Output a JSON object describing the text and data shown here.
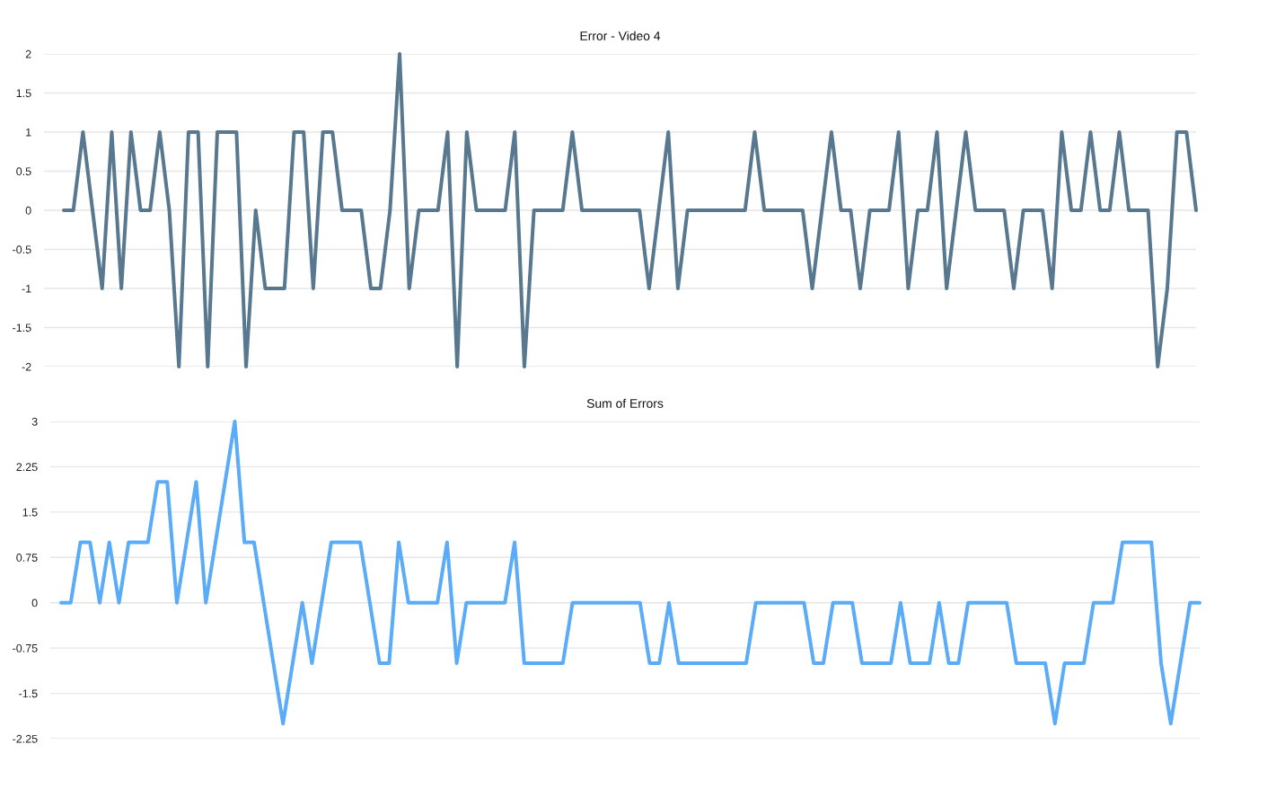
{
  "chart_data": [
    {
      "type": "line",
      "title": "Error - Video 4",
      "categories": [
        null,
        null,
        null,
        null,
        null,
        null,
        null,
        null,
        null,
        null,
        null,
        null,
        null,
        null,
        null,
        null,
        null,
        null,
        null,
        null,
        null,
        null,
        null,
        null,
        null,
        null,
        null,
        null,
        null,
        null,
        null,
        null,
        null,
        null,
        null,
        null,
        null,
        null,
        null,
        null,
        null,
        null,
        null,
        null,
        null,
        null,
        null,
        null,
        null,
        null,
        null,
        null,
        null,
        null,
        null,
        null,
        null,
        null,
        null,
        null,
        null,
        null,
        null,
        null,
        null,
        null,
        null,
        null,
        null,
        null,
        null,
        null,
        null,
        null,
        null,
        null,
        null,
        null,
        null,
        null,
        null,
        null,
        null,
        null,
        null,
        null,
        null,
        null,
        null,
        null,
        null,
        null,
        null,
        null,
        null,
        null,
        null,
        null,
        null,
        null,
        null,
        null,
        null,
        null,
        null,
        null,
        null,
        null,
        null,
        null,
        null,
        null,
        null,
        null,
        null,
        null,
        null,
        null,
        null
      ],
      "series": [
        {
          "color": "#58788f",
          "values": [
            0,
            0,
            1,
            0,
            -1,
            1,
            -1,
            1,
            0,
            0,
            1,
            0,
            -2,
            1,
            1,
            -2,
            1,
            1,
            1,
            -2,
            0,
            -1,
            -1,
            -1,
            1,
            1,
            -1,
            1,
            1,
            0,
            0,
            0,
            -1,
            -1,
            0,
            2,
            -1,
            0,
            0,
            0,
            1,
            -2,
            1,
            0,
            0,
            0,
            0,
            1,
            -2,
            0,
            0,
            0,
            0,
            1,
            0,
            0,
            0,
            0,
            0,
            0,
            0,
            -1,
            0,
            1,
            -1,
            0,
            0,
            0,
            0,
            0,
            0,
            0,
            1,
            0,
            0,
            0,
            0,
            0,
            -1,
            0,
            1,
            0,
            0,
            -1,
            0,
            0,
            0,
            1,
            -1,
            0,
            0,
            1,
            -1,
            0,
            1,
            0,
            0,
            0,
            0,
            -1,
            0,
            0,
            0,
            -1,
            1,
            0,
            0,
            1,
            0,
            0,
            1,
            0,
            0,
            0,
            -2,
            -1,
            1,
            1,
            0
          ]
        }
      ],
      "ylim": [
        -2,
        2
      ],
      "yticks": [
        -2,
        -1.5,
        -1,
        -0.5,
        0,
        0.5,
        1,
        1.5,
        2
      ],
      "grid": "y",
      "tick_labels": "y"
    },
    {
      "type": "line",
      "title": "Sum of Errors",
      "categories": [
        null,
        null,
        null,
        null,
        null,
        null,
        null,
        null,
        null,
        null,
        null,
        null,
        null,
        null,
        null,
        null,
        null,
        null,
        null,
        null,
        null,
        null,
        null,
        null,
        null,
        null,
        null,
        null,
        null,
        null,
        null,
        null,
        null,
        null,
        null,
        null,
        null,
        null,
        null,
        null,
        null,
        null,
        null,
        null,
        null,
        null,
        null,
        null,
        null,
        null,
        null,
        null,
        null,
        null,
        null,
        null,
        null,
        null,
        null,
        null,
        null,
        null,
        null,
        null,
        null,
        null,
        null,
        null,
        null,
        null,
        null,
        null,
        null,
        null,
        null,
        null,
        null,
        null,
        null,
        null,
        null,
        null,
        null,
        null,
        null,
        null,
        null,
        null,
        null,
        null,
        null,
        null,
        null,
        null,
        null,
        null,
        null,
        null,
        null,
        null,
        null,
        null,
        null,
        null,
        null,
        null,
        null,
        null,
        null,
        null,
        null,
        null,
        null,
        null,
        null,
        null,
        null,
        null,
        null
      ],
      "series": [
        {
          "color": "#5aabf8",
          "values": [
            0,
            0,
            1,
            1,
            0,
            1,
            0,
            1,
            1,
            1,
            2,
            2,
            0,
            1,
            2,
            0,
            1,
            2,
            3,
            1,
            1,
            0,
            -1,
            -2,
            -1,
            0,
            -1,
            0,
            1,
            1,
            1,
            1,
            0,
            -1,
            -1,
            1,
            0,
            0,
            0,
            0,
            1,
            -1,
            0,
            0,
            0,
            0,
            0,
            1,
            -1,
            -1,
            -1,
            -1,
            -1,
            0,
            0,
            0,
            0,
            0,
            0,
            0,
            0,
            -1,
            -1,
            0,
            -1,
            -1,
            -1,
            -1,
            -1,
            -1,
            -1,
            -1,
            0,
            0,
            0,
            0,
            0,
            0,
            -1,
            -1,
            0,
            0,
            0,
            -1,
            -1,
            -1,
            -1,
            0,
            -1,
            -1,
            -1,
            0,
            -1,
            -1,
            0,
            0,
            0,
            0,
            0,
            -1,
            -1,
            -1,
            -1,
            -2,
            -1,
            -1,
            -1,
            0,
            0,
            0,
            1,
            1,
            1,
            1,
            -1,
            -2,
            -1,
            0,
            0
          ]
        }
      ],
      "ylim": [
        -2.25,
        3
      ],
      "yticks": [
        -2.25,
        -1.5,
        -0.75,
        0,
        0.75,
        1.5,
        2.25,
        3
      ],
      "grid": "y",
      "tick_labels": "y"
    }
  ]
}
